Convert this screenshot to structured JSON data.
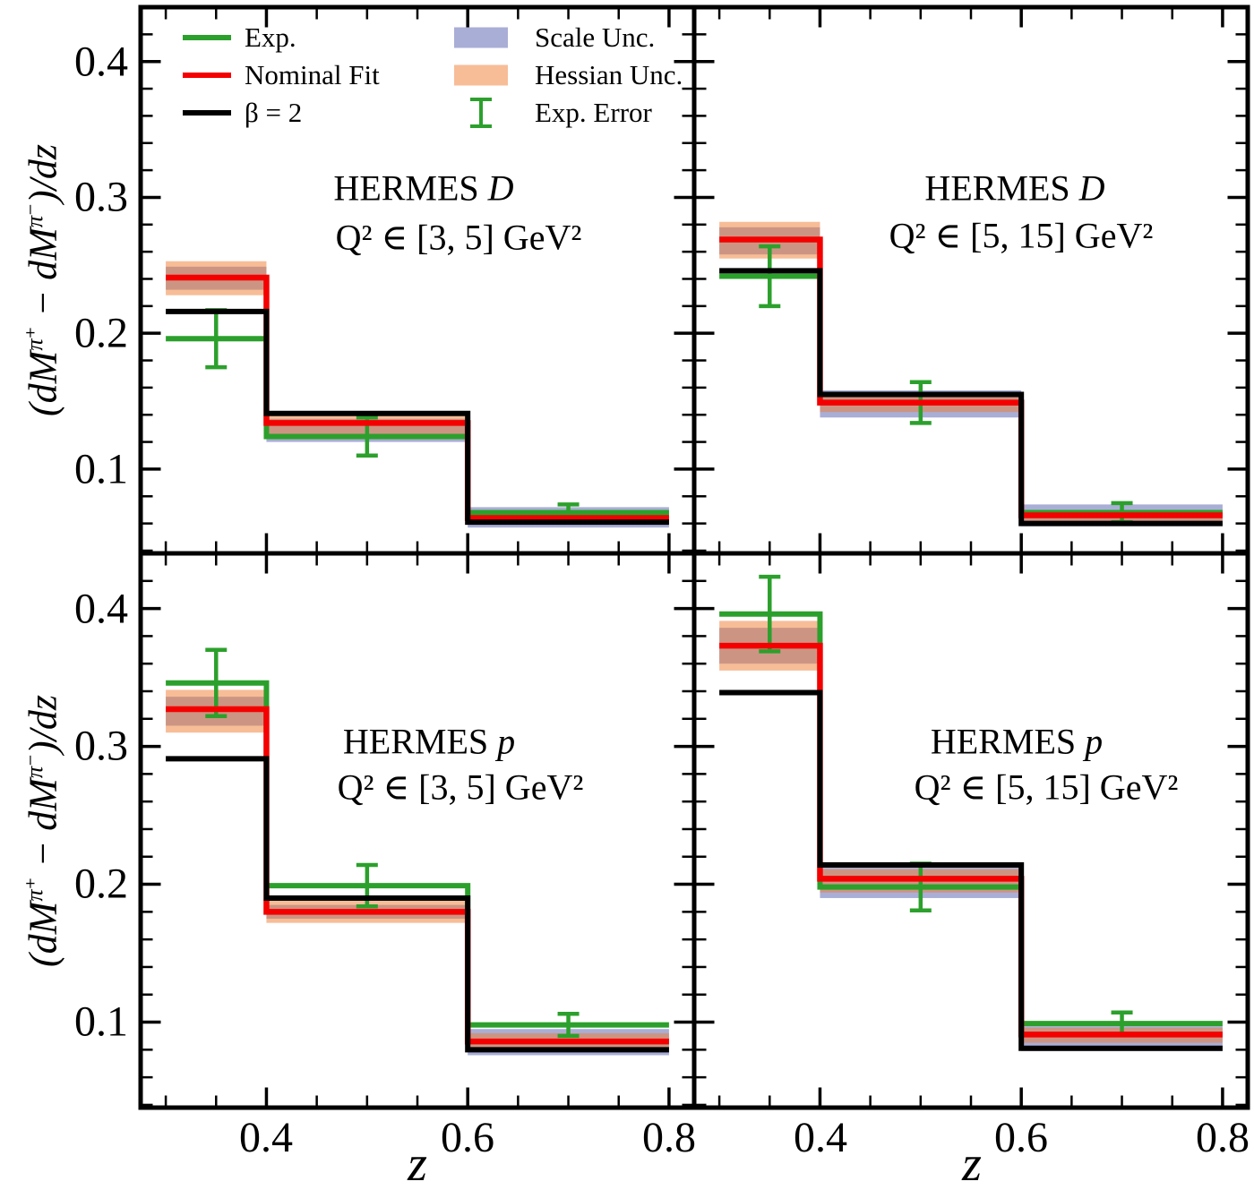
{
  "colors": {
    "exp": "#2ca02c",
    "nominal": "#f40000",
    "beta2": "#000000",
    "scale_band": "rgba(83,93,173,0.5)",
    "hessian_band": "rgba(239,123,47,0.5)"
  },
  "legend": {
    "items_lines": [
      {
        "label": "Exp."
      },
      {
        "label": "Nominal Fit"
      },
      {
        "label": "β = 2"
      }
    ],
    "items_misc": [
      {
        "label": "Scale Unc."
      },
      {
        "label": "Hessian Unc."
      },
      {
        "label": "Exp. Error"
      }
    ]
  },
  "axes": {
    "x_label": "z",
    "y_label_parts": {
      "open": "(dM",
      "sup1": "π⁺",
      "mid": " − dM",
      "sup2": "π⁻",
      "close": ")/dz"
    },
    "x_tick_labels": [
      "0.4",
      "0.6",
      "0.8"
    ],
    "y_tick_labels": [
      "0.4",
      "0.3",
      "0.2",
      "0.1"
    ],
    "x_ticks": [
      0.4,
      0.6,
      0.8
    ],
    "y_ticks": [
      0.1,
      0.2,
      0.3,
      0.4
    ],
    "xlim": [
      0.275,
      0.825
    ],
    "ylim": [
      0.038,
      0.44
    ],
    "x_minor_step": 0.05,
    "y_minor_step": 0.02,
    "bin_centers": [
      0.35,
      0.5,
      0.7
    ]
  },
  "chart_data": [
    {
      "type": "bar",
      "panel": "top-left",
      "title": {
        "experiment": "HERMES",
        "target": "D",
        "q2": "Q² ∈ [3, 5] GeV²"
      },
      "bin_edges": [
        0.3,
        0.4,
        0.6,
        0.8
      ],
      "series": [
        {
          "name": "Exp.",
          "values": [
            0.196,
            0.124,
            0.068
          ]
        },
        {
          "name": "Nominal Fit",
          "values": [
            0.241,
            0.134,
            0.064
          ]
        },
        {
          "name": "β = 2",
          "values": [
            0.216,
            0.141,
            0.061
          ]
        }
      ],
      "bands": [
        {
          "name": "Scale Unc.",
          "lo": [
            0.232,
            0.12,
            0.057
          ],
          "hi": [
            0.249,
            0.137,
            0.072
          ]
        },
        {
          "name": "Hessian Unc.",
          "lo": [
            0.228,
            0.122,
            0.06
          ],
          "hi": [
            0.253,
            0.139,
            0.068
          ]
        }
      ],
      "exp_error": [
        0.021,
        0.014,
        0.006
      ]
    },
    {
      "type": "bar",
      "panel": "top-right",
      "title": {
        "experiment": "HERMES",
        "target": "D",
        "q2": "Q² ∈ [5, 15] GeV²"
      },
      "bin_edges": [
        0.3,
        0.4,
        0.6,
        0.8
      ],
      "series": [
        {
          "name": "Exp.",
          "values": [
            0.242,
            0.149,
            0.068
          ]
        },
        {
          "name": "Nominal Fit",
          "values": [
            0.269,
            0.149,
            0.066
          ]
        },
        {
          "name": "β = 2",
          "values": [
            0.246,
            0.155,
            0.06
          ]
        }
      ],
      "bands": [
        {
          "name": "Scale Unc.",
          "lo": [
            0.258,
            0.138,
            0.058
          ],
          "hi": [
            0.278,
            0.158,
            0.074
          ]
        },
        {
          "name": "Hessian Unc.",
          "lo": [
            0.255,
            0.142,
            0.062
          ],
          "hi": [
            0.282,
            0.153,
            0.07
          ]
        }
      ],
      "exp_error": [
        0.022,
        0.015,
        0.007
      ]
    },
    {
      "type": "bar",
      "panel": "bottom-left",
      "title": {
        "experiment": "HERMES",
        "target": "p",
        "q2": "Q² ∈ [3, 5] GeV²"
      },
      "bin_edges": [
        0.3,
        0.4,
        0.6,
        0.8
      ],
      "series": [
        {
          "name": "Exp.",
          "values": [
            0.346,
            0.199,
            0.098
          ]
        },
        {
          "name": "Nominal Fit",
          "values": [
            0.327,
            0.18,
            0.086
          ]
        },
        {
          "name": "β = 2",
          "values": [
            0.291,
            0.19,
            0.08
          ]
        }
      ],
      "bands": [
        {
          "name": "Scale Unc.",
          "lo": [
            0.315,
            0.175,
            0.076
          ],
          "hi": [
            0.336,
            0.185,
            0.095
          ]
        },
        {
          "name": "Hessian Unc.",
          "lo": [
            0.31,
            0.172,
            0.081
          ],
          "hi": [
            0.341,
            0.188,
            0.092
          ]
        }
      ],
      "exp_error": [
        0.024,
        0.015,
        0.008
      ]
    },
    {
      "type": "bar",
      "panel": "bottom-right",
      "title": {
        "experiment": "HERMES",
        "target": "p",
        "q2": "Q² ∈ [5, 15] GeV²"
      },
      "bin_edges": [
        0.3,
        0.4,
        0.6,
        0.8
      ],
      "series": [
        {
          "name": "Exp.",
          "values": [
            0.396,
            0.198,
            0.099
          ]
        },
        {
          "name": "Nominal Fit",
          "values": [
            0.373,
            0.204,
            0.091
          ]
        },
        {
          "name": "β = 2",
          "values": [
            0.339,
            0.214,
            0.081
          ]
        }
      ],
      "bands": [
        {
          "name": "Scale Unc.",
          "lo": [
            0.36,
            0.19,
            0.079
          ],
          "hi": [
            0.386,
            0.216,
            0.097
          ]
        },
        {
          "name": "Hessian Unc.",
          "lo": [
            0.355,
            0.194,
            0.085
          ],
          "hi": [
            0.391,
            0.211,
            0.096
          ]
        }
      ],
      "exp_error": [
        0.027,
        0.017,
        0.008
      ]
    }
  ]
}
